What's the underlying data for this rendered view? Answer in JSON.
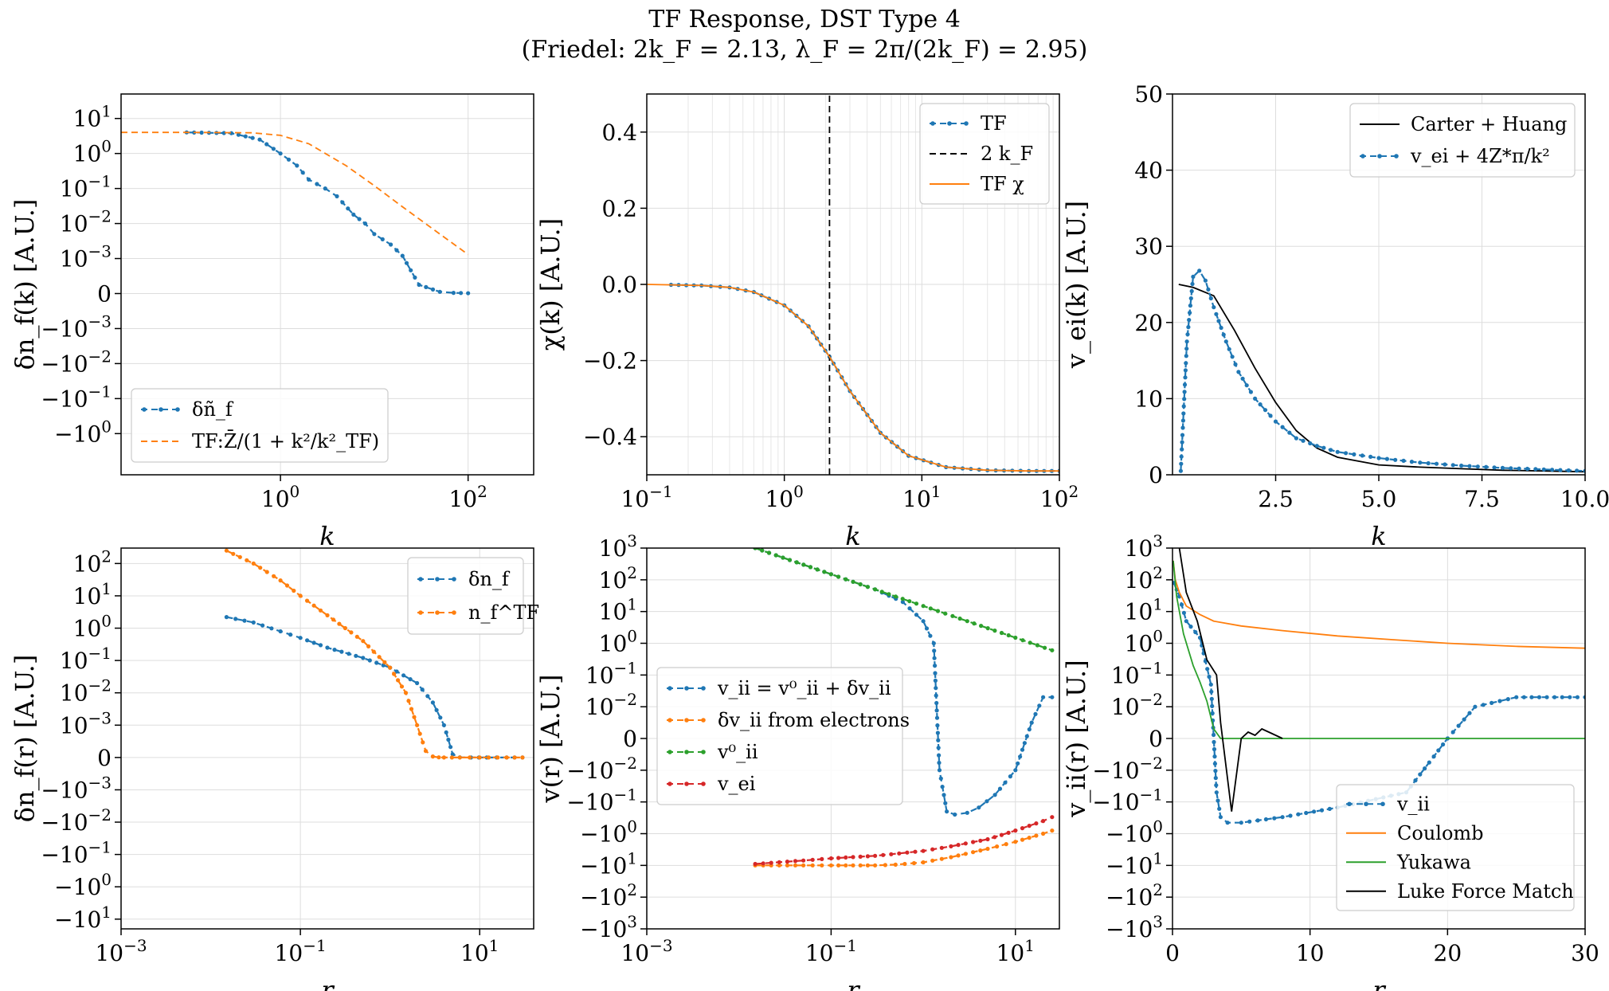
{
  "suptitle": {
    "line1": "TF Response, DST Type 4",
    "line2": "(Friedel: 2k_F = 2.13, λ_F = 2π/(2k_F) = 2.95)"
  },
  "chart_data": [
    {
      "type": "line",
      "xlabel": "k",
      "ylabel": "δn_f(k) [A.U.]",
      "xscale": "log",
      "yscale": "symlog",
      "xlim": [
        0.02,
        500
      ],
      "ylim": [
        -15,
        50
      ],
      "xticks": [
        "10^0",
        "10^2"
      ],
      "yticks": [
        "10^1",
        "10^0",
        "10^-1",
        "10^-2",
        "10^-3",
        "0",
        "-10^-3",
        "-10^-2",
        "-10^-1",
        "-10^0"
      ],
      "grid": true,
      "legend": "lower-left",
      "series": [
        {
          "name": "δñ_f",
          "color": "#1f77b4",
          "style": "dashed-dots",
          "x": [
            0.1,
            0.3,
            0.6,
            1,
            1.5,
            2,
            3,
            4,
            6,
            8,
            10,
            15,
            20,
            30,
            50,
            70,
            100
          ],
          "y": [
            4.0,
            3.8,
            2.5,
            1.0,
            0.45,
            0.18,
            0.1,
            0.06,
            0.018,
            0.01,
            0.005,
            0.0025,
            0.0012,
            0.00025,
            5e-05,
            2e-05,
            1e-05
          ]
        },
        {
          "name": "TF:Z̄/(1 + k²/k²_TF)",
          "color": "#ff7f0e",
          "style": "dashed",
          "x": [
            0.02,
            0.1,
            0.5,
            1,
            2,
            5,
            10,
            20,
            50,
            100
          ],
          "y": [
            4.0,
            4.0,
            3.9,
            3.3,
            1.9,
            0.45,
            0.12,
            0.03,
            0.005,
            0.0013
          ]
        }
      ]
    },
    {
      "type": "line",
      "xlabel": "k",
      "ylabel": "χ(k) [A.U.]",
      "xscale": "log",
      "xlim": [
        0.1,
        100
      ],
      "ylim": [
        -0.5,
        0.5
      ],
      "xticks": [
        "10^-1",
        "10^0",
        "10^1",
        "10^2"
      ],
      "yticks": [
        "0.4",
        "0.2",
        "0.0",
        "-0.2",
        "-0.4"
      ],
      "grid": true,
      "legend": "top-right",
      "series": [
        {
          "name": "TF",
          "color": "#1f77b4",
          "style": "dashed-dots",
          "x": [
            0.15,
            0.25,
            0.4,
            0.6,
            1.0,
            1.5,
            2.13,
            3,
            5,
            8,
            15,
            30,
            60,
            100
          ],
          "y": [
            -0.001,
            -0.003,
            -0.008,
            -0.02,
            -0.055,
            -0.11,
            -0.19,
            -0.28,
            -0.39,
            -0.45,
            -0.48,
            -0.488,
            -0.49,
            -0.49
          ]
        },
        {
          "name": "2 k_F",
          "color": "#000000",
          "style": "dashed",
          "x": [
            2.13,
            2.13
          ],
          "y": [
            -0.5,
            0.5
          ]
        },
        {
          "name": "TF χ",
          "color": "#ff7f0e",
          "style": "solid",
          "x": [
            0.1,
            0.25,
            0.4,
            0.6,
            1.0,
            1.5,
            2.13,
            3,
            5,
            8,
            15,
            30,
            60,
            100
          ],
          "y": [
            0.0,
            -0.003,
            -0.008,
            -0.02,
            -0.055,
            -0.11,
            -0.19,
            -0.28,
            -0.39,
            -0.45,
            -0.48,
            -0.488,
            -0.49,
            -0.49
          ]
        }
      ]
    },
    {
      "type": "line",
      "xlabel": "k",
      "ylabel": "v_ei(k) [A.U.]",
      "xlim": [
        0,
        10
      ],
      "ylim": [
        0,
        50
      ],
      "xticks": [
        "2.5",
        "5.0",
        "7.5",
        "10.0"
      ],
      "yticks": [
        "0",
        "10",
        "20",
        "30",
        "40",
        "50"
      ],
      "grid": true,
      "legend": "top-right",
      "series": [
        {
          "name": "Carter + Huang",
          "color": "#000000",
          "style": "solid",
          "x": [
            0.15,
            0.5,
            1,
            1.5,
            2,
            2.5,
            3,
            3.5,
            4,
            5,
            6,
            7,
            8,
            9,
            10
          ],
          "y": [
            25,
            24.6,
            23.5,
            19,
            14,
            9.5,
            5.8,
            3.5,
            2.3,
            1.3,
            1.0,
            0.8,
            0.6,
            0.5,
            0.4
          ]
        },
        {
          "name": "v_ei + 4Z*π/k²",
          "color": "#1f77b4",
          "style": "dashed-dots",
          "x": [
            0.2,
            0.35,
            0.5,
            0.65,
            0.8,
            1,
            1.3,
            1.6,
            2,
            2.5,
            3,
            3.5,
            4,
            5,
            6,
            7,
            8,
            9,
            10
          ],
          "y": [
            0.5,
            17.5,
            26,
            26.8,
            25.5,
            22,
            17.5,
            13.5,
            10,
            7,
            4.8,
            3.8,
            3.0,
            2.2,
            1.6,
            1.2,
            0.9,
            0.7,
            0.5
          ]
        }
      ]
    },
    {
      "type": "line",
      "xlabel": "r",
      "ylabel": "δn_f(r) [A.U.]",
      "xscale": "log",
      "yscale": "symlog",
      "xlim": [
        0.001,
        40
      ],
      "ylim": [
        -20,
        300
      ],
      "xticks": [
        "10^-3",
        "10^-1",
        "10^1"
      ],
      "yticks": [
        "10^2",
        "10^1",
        "10^0",
        "10^-1",
        "10^-2",
        "10^-3",
        "0",
        "-10^-3",
        "-10^-2",
        "-10^-1",
        "-10^0",
        "-10^1"
      ],
      "grid": true,
      "legend": "top-right",
      "series": [
        {
          "name": "δn_f",
          "color": "#1f77b4",
          "style": "dashed-dots",
          "x": [
            0.015,
            0.03,
            0.06,
            0.1,
            0.2,
            0.5,
            1,
            2,
            3,
            4,
            5,
            6,
            8,
            12,
            20,
            30
          ],
          "y": [
            2.2,
            1.5,
            0.8,
            0.5,
            0.25,
            0.12,
            0.06,
            0.02,
            0.005,
            0.001,
            0.0001,
            5e-06,
            0.0,
            0.0,
            0.0,
            0.0
          ]
        },
        {
          "name": "n_f^TF",
          "color": "#ff7f0e",
          "style": "dashed-dots",
          "x": [
            0.015,
            0.03,
            0.06,
            0.1,
            0.2,
            0.5,
            1,
            1.5,
            2,
            2.5,
            3,
            3.5,
            4,
            6,
            10,
            20,
            30
          ],
          "y": [
            250,
            100,
            30,
            10,
            2.5,
            0.4,
            0.06,
            0.01,
            0.001,
            0.0002,
            3e-05,
            5e-06,
            0.0,
            0.0,
            0.0,
            0.0,
            0.0
          ]
        }
      ]
    },
    {
      "type": "line",
      "xlabel": "r",
      "ylabel": "v(r) [A.U.]",
      "xscale": "log",
      "yscale": "symlog",
      "xlim": [
        0.001,
        30
      ],
      "ylim": [
        -1000,
        1000
      ],
      "xticks": [
        "10^-3",
        "10^-1",
        "10^1"
      ],
      "yticks": [
        "10^3",
        "10^2",
        "10^1",
        "10^0",
        "10^-1",
        "10^-2",
        "0",
        "-10^-2",
        "-10^-1",
        "-10^0",
        "-10^1",
        "-10^2",
        "-10^3"
      ],
      "grid": true,
      "legend": "center-left",
      "series": [
        {
          "name": "v_ii = v⁰_ii + δv_ii",
          "color": "#1f77b4",
          "style": "dashed-dots",
          "x": [
            0.015,
            0.03,
            0.1,
            0.3,
            0.6,
            1,
            1.3,
            1.5,
            1.8,
            2.2,
            3,
            4,
            6,
            10,
            15,
            20,
            25
          ],
          "y": [
            1000,
            500,
            150,
            50,
            20,
            5,
            1,
            -0.01,
            -0.2,
            -0.25,
            -0.22,
            -0.15,
            -0.06,
            -0.01,
            0.005,
            0.02,
            0.02
          ]
        },
        {
          "name": "δv_ii from electrons",
          "color": "#ff7f0e",
          "style": "dashed-dots",
          "x": [
            0.015,
            0.05,
            0.1,
            0.3,
            0.5,
            1,
            2,
            5,
            10,
            20,
            25
          ],
          "y": [
            -10,
            -10,
            -10,
            -10,
            -9.5,
            -8,
            -5.5,
            -3,
            -1.8,
            -1.0,
            -0.8
          ]
        },
        {
          "name": "v⁰_ii",
          "color": "#2ca02c",
          "style": "dashed-dots",
          "x": [
            0.015,
            0.03,
            0.1,
            0.3,
            1,
            3,
            10,
            25
          ],
          "y": [
            1000,
            500,
            150,
            50,
            15,
            5,
            1.5,
            0.6
          ]
        },
        {
          "name": "v_ei",
          "color": "#d62728",
          "style": "dashed-dots",
          "x": [
            0.015,
            0.05,
            0.1,
            0.3,
            1,
            2,
            5,
            10,
            20,
            25
          ],
          "y": [
            -9,
            -7,
            -6,
            -5,
            -3.5,
            -2.5,
            -1.5,
            -0.8,
            -0.4,
            -0.3
          ]
        }
      ]
    },
    {
      "type": "line",
      "xlabel": "r",
      "ylabel": "v_ii(r) [A.U.]",
      "yscale": "symlog",
      "xlim": [
        0,
        30
      ],
      "ylim": [
        -1000,
        1000
      ],
      "xticks": [
        "0",
        "10",
        "20",
        "30"
      ],
      "yticks": [
        "10^3",
        "10^2",
        "10^1",
        "10^0",
        "10^-1",
        "10^-2",
        "0",
        "-10^-2",
        "-10^-1",
        "-10^0",
        "-10^1",
        "-10^2",
        "-10^3"
      ],
      "grid": true,
      "legend": "lower-right",
      "series": [
        {
          "name": "v_ii",
          "color": "#1f77b4",
          "style": "dashed-dots",
          "x": [
            0.1,
            0.5,
            1,
            2,
            2.8,
            3.2,
            3.5,
            4,
            5,
            8,
            12,
            17,
            20,
            22,
            25,
            30
          ],
          "y": [
            80,
            30,
            5,
            1.5,
            0.05,
            -0.05,
            -0.3,
            -0.45,
            -0.45,
            -0.3,
            -0.15,
            -0.05,
            0.0,
            0.01,
            0.02,
            0.02
          ]
        },
        {
          "name": "Coulomb",
          "color": "#ff7f0e",
          "style": "solid",
          "x": [
            0.05,
            0.2,
            0.5,
            1,
            2,
            3,
            5,
            8,
            12,
            16,
            20,
            25,
            30
          ],
          "y": [
            400,
            100,
            40,
            15,
            8,
            5,
            3.5,
            2.5,
            1.7,
            1.3,
            1.0,
            0.8,
            0.7
          ]
        },
        {
          "name": "Yukawa",
          "color": "#2ca02c",
          "style": "solid",
          "x": [
            0.05,
            0.3,
            0.8,
            1.5,
            2,
            2.5,
            3,
            3.5,
            4,
            10,
            20,
            30
          ],
          "y": [
            400,
            30,
            2,
            0.2,
            0.06,
            0.015,
            0.003,
            0.0,
            0.0,
            0.0,
            0.0,
            0.0
          ]
        },
        {
          "name": "Luke Force Match",
          "color": "#000000",
          "style": "solid",
          "x": [
            0.5,
            1,
            1.8,
            2.5,
            3.2,
            3.5,
            4.3,
            5,
            5.5,
            6,
            6.5,
            7,
            7.5,
            8
          ],
          "y": [
            1000,
            40,
            5,
            0.3,
            0.1,
            0.005,
            -0.2,
            0.0,
            0.002,
            0.001,
            0.003,
            0.002,
            0.001,
            0.0
          ]
        }
      ]
    }
  ]
}
